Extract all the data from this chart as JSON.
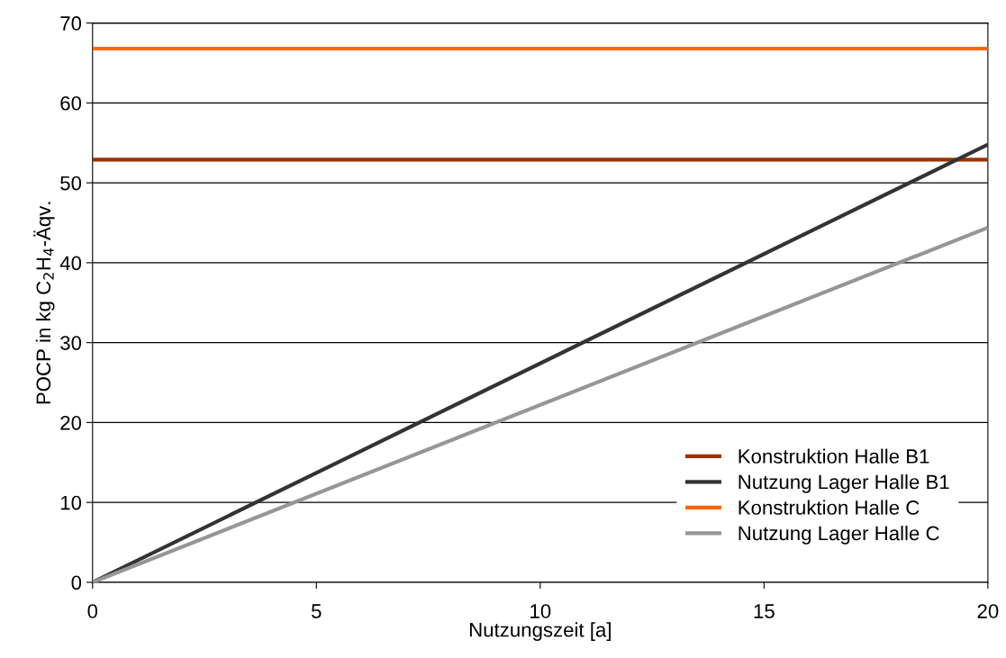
{
  "chart_data": {
    "type": "line",
    "xlabel": "Nutzungszeit [a]",
    "ylabel": "POCP in kg C$_{2}$H$_{4}$-Äqv.",
    "x": [
      0,
      20
    ],
    "series": [
      {
        "name": "Konstruktion Halle B1",
        "color": "#993300",
        "values": [
          52.9,
          52.9
        ]
      },
      {
        "name": "Nutzung Lager Halle B1",
        "color": "#333333",
        "values": [
          0,
          54.8
        ]
      },
      {
        "name": "Konstruktion Halle C",
        "color": "#ff6600",
        "values": [
          66.8,
          66.8
        ]
      },
      {
        "name": "Nutzung Lager Halle C",
        "color": "#969696",
        "values": [
          0,
          44.4
        ]
      }
    ],
    "xlim": [
      0,
      20
    ],
    "xticks": [
      0,
      5,
      10,
      15,
      20
    ],
    "ylim": [
      0,
      70
    ],
    "yticks": [
      0,
      10,
      20,
      30,
      40,
      50,
      60,
      70
    ],
    "grid": "y",
    "legend": "bottom right",
    "marker": "none",
    "line_style": "solid"
  }
}
